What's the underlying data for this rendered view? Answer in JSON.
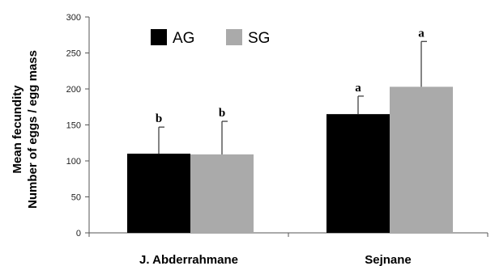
{
  "chart_data": {
    "type": "bar",
    "ylabel": [
      "Mean fecundity",
      "Number of eggs / egg mass"
    ],
    "categories": [
      "J. Abderrahmane",
      "Sejnane"
    ],
    "series": [
      {
        "name": "AG",
        "color": "#000000",
        "values": [
          110,
          165
        ],
        "errors": [
          37,
          25
        ],
        "labels": [
          "b",
          "a"
        ]
      },
      {
        "name": "SG",
        "color": "#aaaaaa",
        "values": [
          109,
          203
        ],
        "errors": [
          46,
          63
        ],
        "labels": [
          "b",
          "a"
        ]
      }
    ],
    "ylim": [
      0,
      300
    ],
    "yticks": [
      0,
      50,
      100,
      150,
      200,
      250,
      300
    ],
    "legend_position": "top-left",
    "grid": false
  }
}
